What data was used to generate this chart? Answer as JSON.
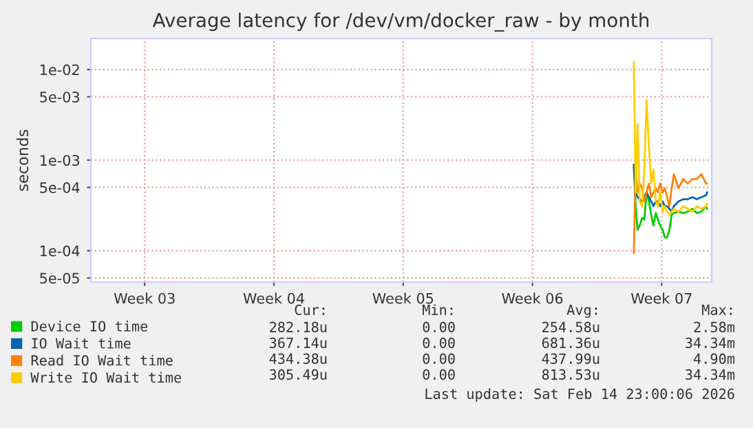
{
  "chart_data": {
    "type": "line",
    "title": "Average latency for /dev/vm/docker_raw - by month",
    "ylabel": "seconds",
    "x": [
      "2026-02-10T23:45",
      "2026-02-11T02:10",
      "2026-02-11T04:34",
      "2026-02-11T07:26",
      "2026-02-11T10:34",
      "2026-02-11T13:26",
      "2026-02-11T16:19",
      "2026-02-11T19:26",
      "2026-02-11T22:19",
      "2026-02-12T01:12",
      "2026-02-12T04:19",
      "2026-02-12T07:12",
      "2026-02-12T10:05",
      "2026-02-12T13:12",
      "2026-02-12T16:05",
      "2026-02-12T18:58",
      "2026-02-12T22:05",
      "2026-02-13T00:58",
      "2026-02-13T03:50",
      "2026-02-13T09:50",
      "2026-02-13T15:50",
      "2026-02-13T21:50",
      "2026-02-14T03:50",
      "2026-02-14T09:36",
      "2026-02-14T15:36",
      "2026-02-14T21:36",
      "2026-02-14T23:00"
    ],
    "series": [
      {
        "name": "Device IO time",
        "color": "#00cc00",
        "values": [
          0.00083,
          0.00031,
          0.00017,
          0.00019,
          0.00023,
          0.00022,
          0.00044,
          0.00035,
          0.00025,
          0.00019,
          0.00026,
          0.00022,
          0.00019,
          0.00017,
          0.00014,
          0.00014,
          0.00017,
          0.00025,
          0.00026,
          0.00027,
          0.00026,
          0.00027,
          0.00029,
          0.00026,
          0.00027,
          0.00031,
          0.00029
        ]
      },
      {
        "name": "IO Wait time",
        "color": "#0066b3",
        "values": [
          0.00089,
          0.00044,
          0.00039,
          0.00037,
          0.00035,
          0.00039,
          0.00044,
          0.00039,
          0.00035,
          0.00031,
          0.00035,
          0.00035,
          0.00031,
          0.00035,
          0.00031,
          0.00031,
          0.00029,
          0.00027,
          0.00031,
          0.00035,
          0.00037,
          0.00037,
          0.00039,
          0.00037,
          0.00039,
          0.00041,
          0.00044
        ]
      },
      {
        "name": "Read IO Wait time",
        "color": "#ff8000",
        "values": [
          9.5e-05,
          0.00079,
          0.00044,
          0.00055,
          0.00049,
          0.00035,
          0.00044,
          0.00055,
          0.00039,
          0.00044,
          0.00049,
          0.00044,
          0.00055,
          0.00044,
          0.00049,
          0.00039,
          0.00031,
          0.00049,
          0.0007,
          0.00049,
          0.00062,
          0.00055,
          0.00062,
          0.00062,
          0.0007,
          0.00055,
          0.00055
        ]
      },
      {
        "name": "Write IO Wait time",
        "color": "#ffcc00",
        "values": [
          0.012,
          0.00044,
          0.0025,
          0.00035,
          0.00031,
          0.00079,
          0.0046,
          0.0014,
          0.00055,
          0.00079,
          0.00035,
          0.00031,
          0.00044,
          0.00027,
          0.00031,
          0.00027,
          0.00025,
          0.00027,
          0.00029,
          0.00027,
          0.00031,
          0.00029,
          0.00027,
          0.00031,
          0.00029,
          0.00031,
          0.00033
        ]
      }
    ],
    "log": "y",
    "xlim": [
      "2026-01-12T14:00",
      "2026-02-15T05:00"
    ],
    "ylim": [
      4.5e-05,
      0.022
    ],
    "xticks": [
      {
        "value": "2026-01-15T12:00",
        "label": "Week 03"
      },
      {
        "value": "2026-01-22T12:00",
        "label": "Week 04"
      },
      {
        "value": "2026-01-29T12:00",
        "label": "Week 05"
      },
      {
        "value": "2026-02-05T12:00",
        "label": "Week 06"
      },
      {
        "value": "2026-02-12T12:00",
        "label": "Week 07"
      }
    ],
    "yticks": [
      {
        "value": 0.01,
        "label": "1e-02"
      },
      {
        "value": 0.005,
        "label": "5e-03"
      },
      {
        "value": 0.001,
        "label": "1e-03"
      },
      {
        "value": 0.0005,
        "label": "5e-04"
      },
      {
        "value": 0.0001,
        "label": "1e-04"
      },
      {
        "value": 5e-05,
        "label": "5e-05"
      }
    ],
    "grid": true,
    "legend": "bottom left",
    "annotations": [
      "Cur:",
      "Min:",
      "Avg:",
      "Max:",
      "282.18u",
      "0.00",
      "254.58u",
      "2.58m",
      "367.14u",
      "0.00",
      "681.36u",
      "34.34m",
      "434.38u",
      "0.00",
      "437.99u",
      "4.90m",
      "305.49u",
      "0.00",
      "813.53u",
      "34.34m",
      "Last update: Sat Feb 14 23:00:06 2026"
    ]
  }
}
